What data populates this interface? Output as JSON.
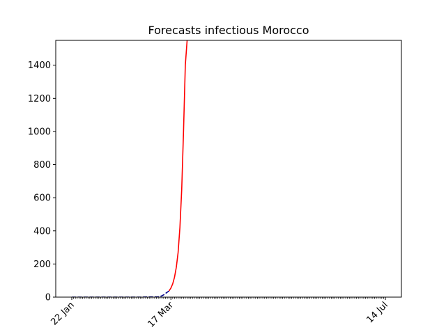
{
  "chart_data": {
    "type": "line",
    "title": "Forecasts infectious Morocco",
    "xlabel": "",
    "ylabel": "",
    "x_tick_labels": [
      "22 Jan",
      "17 Mar",
      "14 Jul"
    ],
    "x_tick_values": [
      "2020-01-22",
      "2020-03-17",
      "2020-07-14"
    ],
    "xlim": [
      "2020-01-22",
      "2020-07-14"
    ],
    "y_ticks": [
      0,
      200,
      400,
      600,
      800,
      1000,
      1200,
      1400
    ],
    "ylim": [
      0,
      1550
    ],
    "grid": false,
    "legend": "none",
    "series": [
      {
        "color": "#00008b",
        "style": "dashed",
        "points": [
          {
            "x": "2020-01-22",
            "y": 0
          },
          {
            "x": "2020-03-01",
            "y": 0
          },
          {
            "x": "2020-03-05",
            "y": 1
          },
          {
            "x": "2020-03-10",
            "y": 2
          },
          {
            "x": "2020-03-11",
            "y": 4
          },
          {
            "x": "2020-03-12",
            "y": 8
          },
          {
            "x": "2020-03-13",
            "y": 14
          },
          {
            "x": "2020-03-14",
            "y": 22
          },
          {
            "x": "2020-03-15",
            "y": 30
          },
          {
            "x": "2020-03-16",
            "y": 37
          }
        ]
      },
      {
        "color": "#ff0000",
        "style": "solid",
        "points": [
          {
            "x": "2020-03-16",
            "y": 38
          },
          {
            "x": "2020-03-17",
            "y": 55
          },
          {
            "x": "2020-03-18",
            "y": 80
          },
          {
            "x": "2020-03-19",
            "y": 120
          },
          {
            "x": "2020-03-20",
            "y": 180
          },
          {
            "x": "2020-03-21",
            "y": 270
          },
          {
            "x": "2020-03-22",
            "y": 420
          },
          {
            "x": "2020-03-23",
            "y": 650
          },
          {
            "x": "2020-03-24",
            "y": 1000
          },
          {
            "x": "2020-03-25",
            "y": 1400
          },
          {
            "x": "2020-03-26",
            "y": 1550
          }
        ]
      }
    ]
  }
}
